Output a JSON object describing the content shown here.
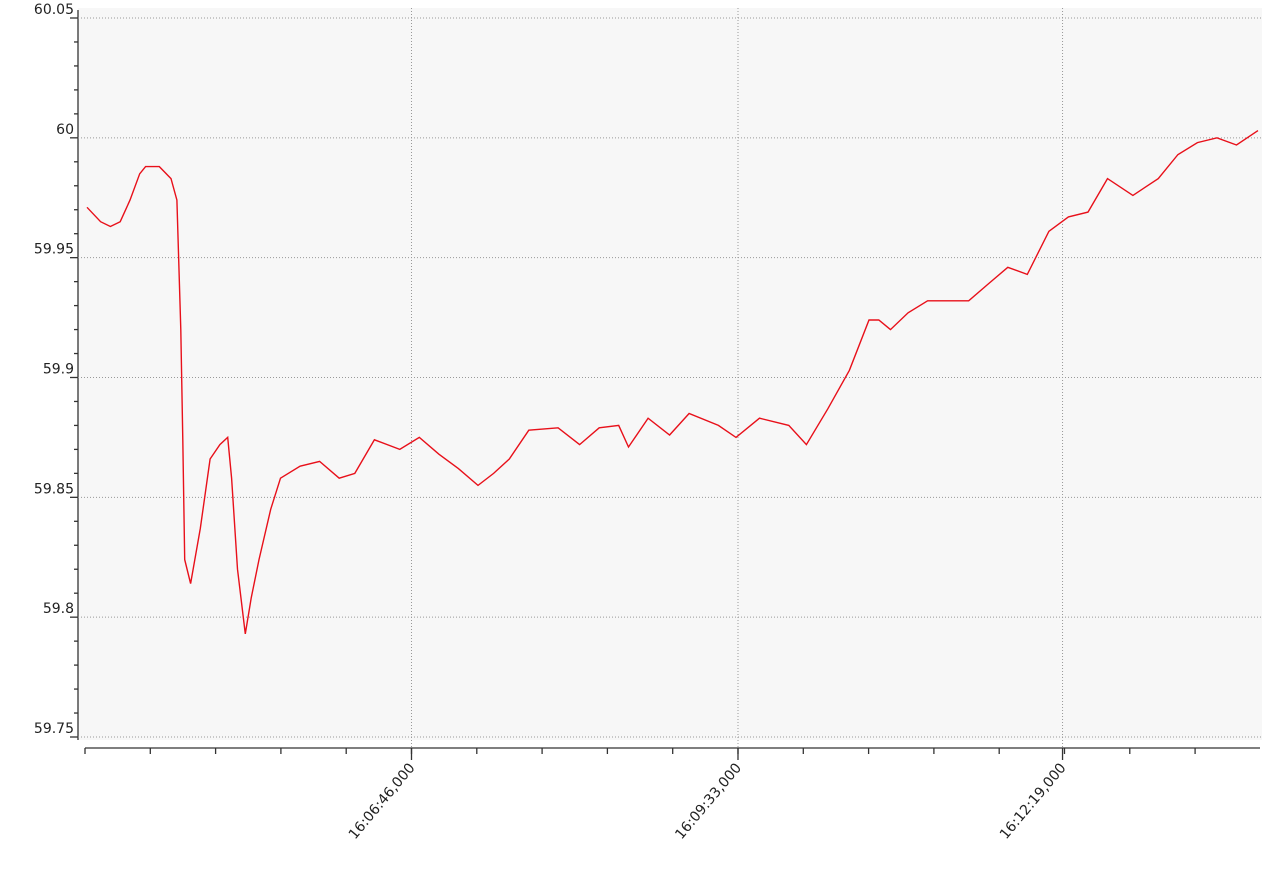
{
  "chart_data": {
    "type": "line",
    "x": [
      "16:04:00",
      "16:04:07",
      "16:04:12",
      "16:04:17",
      "16:04:22",
      "16:04:27",
      "16:04:30",
      "16:04:37",
      "16:04:43",
      "16:04:46",
      "16:04:48",
      "16:04:49",
      "16:04:50",
      "16:04:53",
      "16:04:58",
      "16:05:03",
      "16:05:08",
      "16:05:12",
      "16:05:14",
      "16:05:17",
      "16:05:21",
      "16:05:24",
      "16:05:28",
      "16:05:34",
      "16:05:39",
      "16:05:49",
      "16:05:59",
      "16:06:09",
      "16:06:17",
      "16:06:27",
      "16:06:40",
      "16:06:50",
      "16:07:00",
      "16:07:10",
      "16:07:20",
      "16:07:28",
      "16:07:36",
      "16:07:46",
      "16:08:01",
      "16:08:12",
      "16:08:22",
      "16:08:32",
      "16:08:37",
      "16:08:47",
      "16:08:58",
      "16:09:08",
      "16:09:23",
      "16:09:32",
      "16:09:44",
      "16:09:59",
      "16:10:08",
      "16:10:19",
      "16:10:30",
      "16:10:40",
      "16:10:45",
      "16:10:51",
      "16:11:00",
      "16:11:10",
      "16:11:31",
      "16:11:41",
      "16:11:51",
      "16:12:01",
      "16:12:12",
      "16:12:22",
      "16:12:32",
      "16:12:42",
      "16:12:55",
      "16:13:08",
      "16:13:18",
      "16:13:28",
      "16:13:38",
      "16:13:48",
      "16:13:59"
    ],
    "values": [
      59.971,
      59.965,
      59.963,
      59.965,
      59.974,
      59.985,
      59.988,
      59.988,
      59.983,
      59.974,
      59.92,
      59.874,
      59.824,
      59.814,
      59.837,
      59.866,
      59.872,
      59.875,
      59.858,
      59.82,
      59.793,
      59.808,
      59.824,
      59.845,
      59.858,
      59.863,
      59.865,
      59.858,
      59.86,
      59.874,
      59.87,
      59.875,
      59.868,
      59.862,
      59.855,
      59.86,
      59.866,
      59.878,
      59.879,
      59.872,
      59.879,
      59.88,
      59.871,
      59.883,
      59.876,
      59.885,
      59.88,
      59.875,
      59.883,
      59.88,
      59.872,
      59.887,
      59.903,
      59.924,
      59.924,
      59.92,
      59.927,
      59.932,
      59.932,
      59.939,
      59.946,
      59.943,
      59.961,
      59.967,
      59.969,
      59.983,
      59.976,
      59.983,
      59.993,
      59.998,
      60,
      59.997,
      60.003
    ],
    "color": "#e8101a",
    "xlim": [
      "16:03:59",
      "16:14:00"
    ],
    "xticks": [
      {
        "value": "16:06:46",
        "label": "16:06:46,000"
      },
      {
        "value": "16:09:33",
        "label": "16:09:33,000"
      },
      {
        "value": "16:12:19",
        "label": "16:12:19,000"
      }
    ],
    "ylim": [
      59.75,
      60.05
    ],
    "yticks": [
      59.75,
      59.8,
      59.85,
      59.9,
      59.95,
      60,
      60.05
    ],
    "grid": true
  }
}
